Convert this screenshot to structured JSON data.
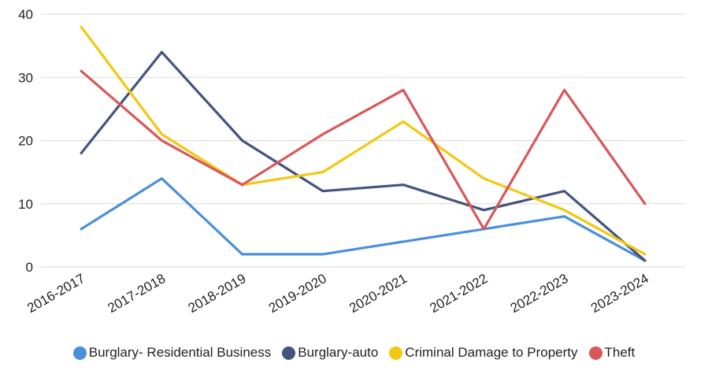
{
  "chart_data": {
    "type": "line",
    "categories": [
      "2016-2017",
      "2017-2018",
      "2018-2019",
      "2019-2020",
      "2020-2021",
      "2021-2022",
      "2022-2023",
      "2023-2024"
    ],
    "ylim": [
      0,
      40
    ],
    "yticks": [
      "0",
      "10",
      "20",
      "30",
      "40"
    ],
    "grid": true,
    "legend_position": "bottom",
    "series": [
      {
        "name": "Burglary- Residential Business",
        "color": "#4A8FDC",
        "values": [
          6,
          14,
          2,
          2,
          4,
          6,
          8,
          1
        ]
      },
      {
        "name": "Burglary-auto",
        "color": "#44547F",
        "values": [
          18,
          34,
          20,
          12,
          13,
          9,
          12,
          1
        ]
      },
      {
        "name": "Criminal Damage to Property",
        "color": "#F2C811",
        "values": [
          38,
          21,
          13,
          15,
          23,
          14,
          9,
          2
        ]
      },
      {
        "name": "Theft",
        "color": "#D9575A",
        "values": [
          31,
          20,
          13,
          21,
          28,
          6,
          28,
          10
        ]
      }
    ]
  }
}
